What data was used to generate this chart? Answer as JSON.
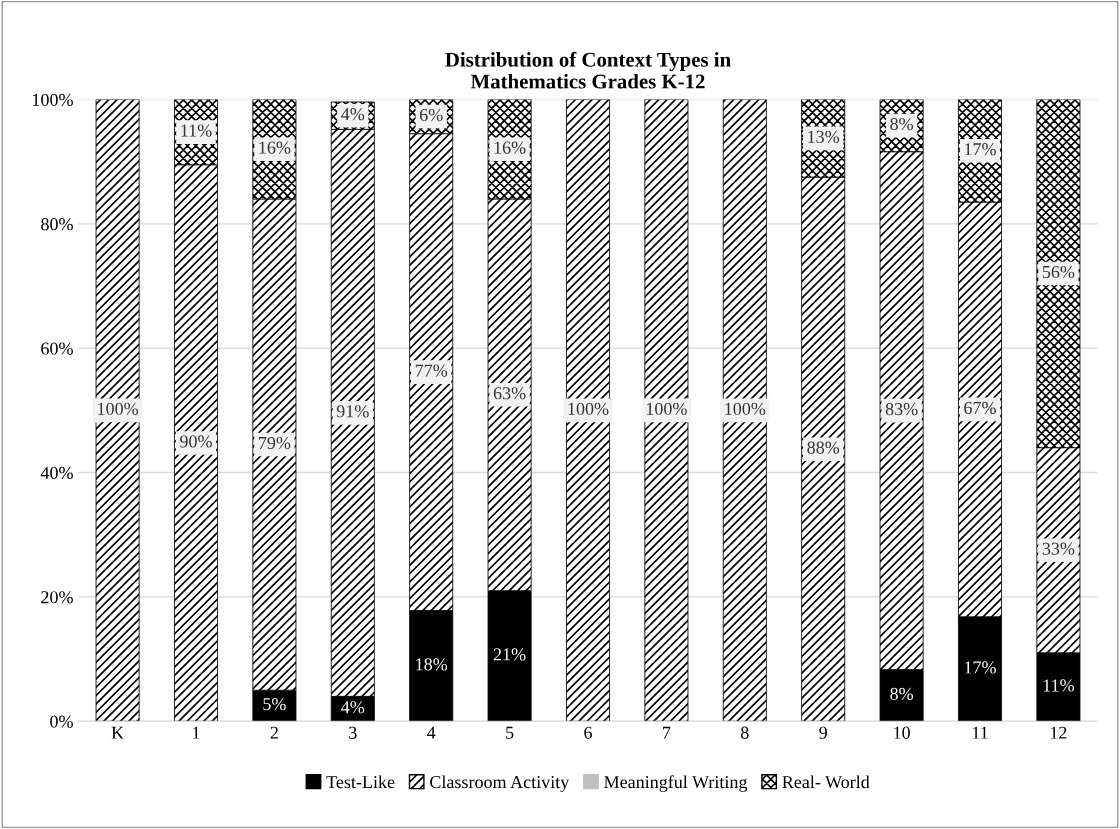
{
  "chart_data": {
    "type": "bar",
    "stacked": true,
    "title": "Distribution of Context Types in\nMathematics Grades K-12",
    "categories": [
      "K",
      "1",
      "2",
      "3",
      "4",
      "5",
      "6",
      "7",
      "8",
      "9",
      "10",
      "11",
      "12"
    ],
    "series": [
      {
        "name": "Test-Like",
        "color": "#000000",
        "values": [
          0,
          0,
          5,
          4,
          17.8,
          21,
          0,
          0,
          0,
          0,
          8.3,
          16.8,
          11
        ],
        "value_labels": [
          null,
          null,
          "5%",
          "4%",
          "18%",
          "21%",
          null,
          null,
          null,
          null,
          "8%",
          "17%",
          "11%"
        ]
      },
      {
        "name": "Classroom Activity",
        "color": "#000000",
        "values": [
          100,
          89.5,
          79,
          91.2,
          76.7,
          63,
          100,
          100,
          100,
          87.5,
          83.3,
          66.7,
          33
        ],
        "value_labels": [
          "100%",
          "90%",
          "79%",
          "91%",
          "77%",
          "63%",
          "100%",
          "100%",
          "100%",
          "88%",
          "83%",
          "67%",
          "33%"
        ]
      },
      {
        "name": "Meaningful Writing",
        "color": "#bfbfbf",
        "values": [
          0,
          0,
          0,
          0,
          0,
          0,
          0,
          0,
          0,
          0,
          0,
          0,
          0
        ],
        "value_labels": [
          null,
          null,
          null,
          null,
          null,
          null,
          null,
          null,
          null,
          null,
          null,
          null,
          null
        ]
      },
      {
        "name": "Real- World",
        "color": "#000000",
        "values": [
          0,
          10.5,
          16,
          4.4,
          5.5,
          16,
          0,
          0,
          0,
          12.5,
          8.4,
          16.5,
          56
        ],
        "value_labels": [
          null,
          "11%",
          "16%",
          "4%",
          "6%",
          "16%",
          null,
          null,
          null,
          "13%",
          "8%",
          "17%",
          "56%"
        ]
      }
    ],
    "ylim": [
      0,
      100
    ],
    "yticks": [
      {
        "value": 0,
        "label": "0%"
      },
      {
        "value": 20,
        "label": "20%"
      },
      {
        "value": 40,
        "label": "40%"
      },
      {
        "value": 60,
        "label": "60%"
      },
      {
        "value": 80,
        "label": "80%"
      },
      {
        "value": 100,
        "label": "100%"
      }
    ],
    "grid": "y",
    "legend": "bottom"
  }
}
